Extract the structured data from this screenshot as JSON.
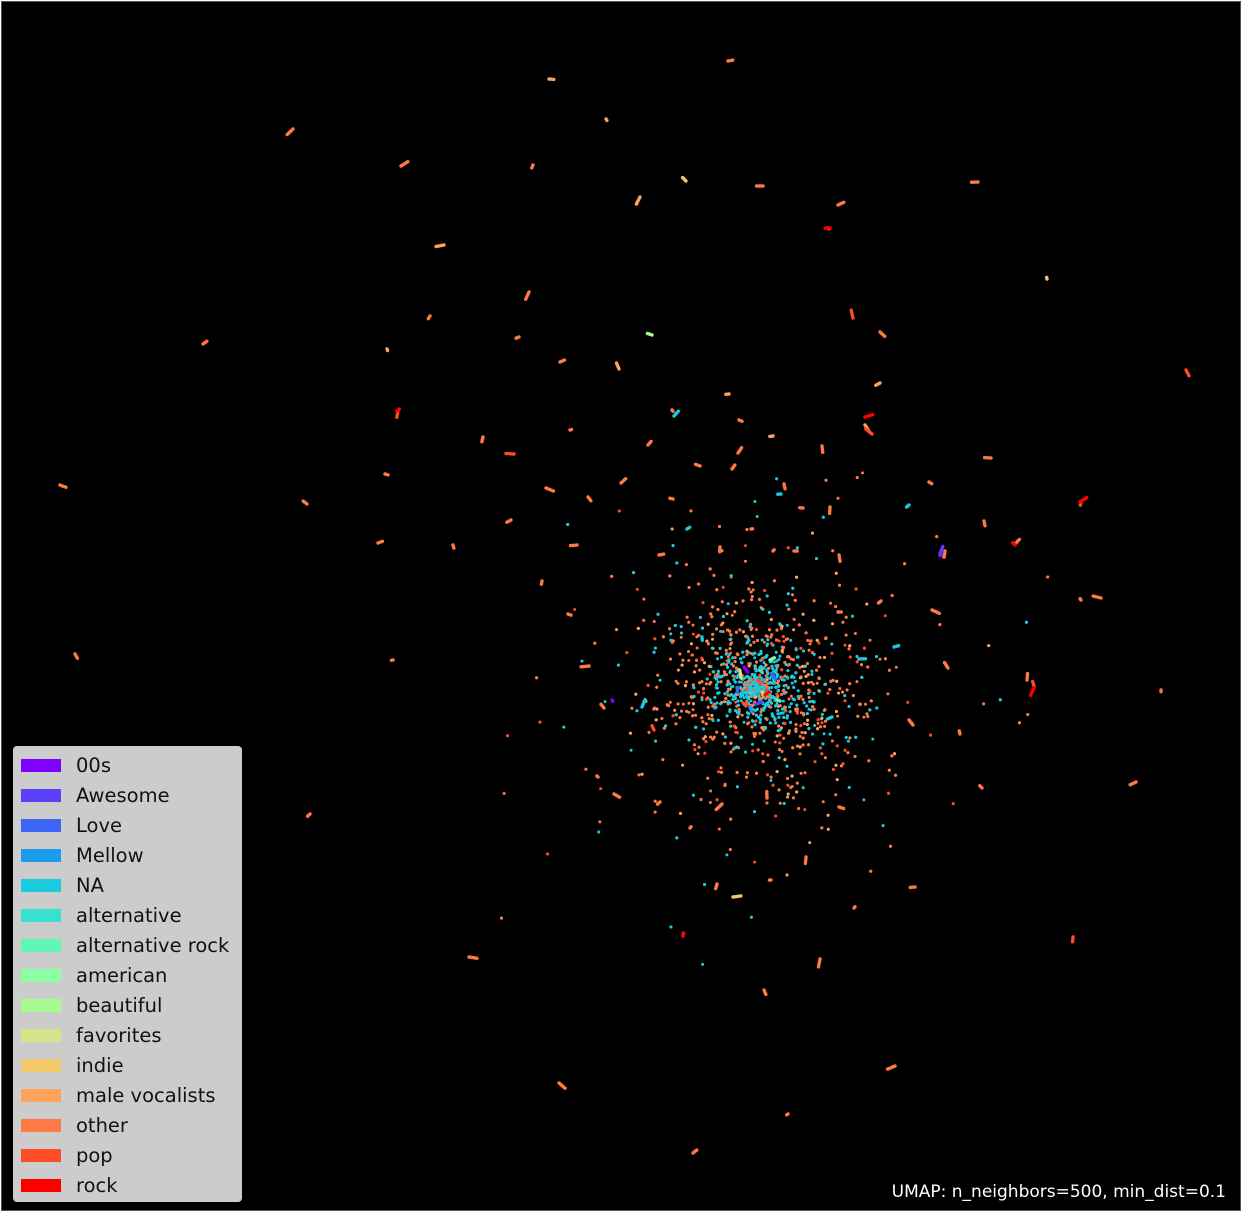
{
  "chart_data": {
    "type": "scatter",
    "title": "",
    "xlabel": "",
    "ylabel": "",
    "axes_visible": false,
    "grid": false,
    "background": "#000000",
    "legend_position": "lower-left",
    "annotation": "UMAP: n_neighbors=500, min_dist=0.1",
    "main_cluster": {
      "center": [
        755,
        685
      ],
      "spread": 85,
      "approx_points": 2600
    },
    "series": [
      {
        "name": "00s",
        "color": "#8000ff",
        "points": [
          [
            742,
            665
          ],
          [
            610,
            698
          ],
          [
            941,
            553
          ]
        ]
      },
      {
        "name": "Awesome",
        "color": "#5a40fa",
        "points": [
          [
            760,
            700
          ],
          [
            938,
            552
          ]
        ]
      },
      {
        "name": "Love",
        "color": "#3b66f5",
        "points": [
          [
            735,
            690
          ],
          [
            770,
            672
          ]
        ]
      },
      {
        "name": "Mellow",
        "color": "#1d9ced",
        "points": [
          [
            758,
            683
          ],
          [
            748,
            705
          ]
        ]
      },
      {
        "name": "NA",
        "color": "#1ccadf",
        "points": [
          [
            779,
            492
          ],
          [
            685,
            527
          ],
          [
            907,
            503
          ],
          [
            857,
            657
          ],
          [
            892,
            645
          ],
          [
            640,
            705
          ],
          [
            672,
            414
          ],
          [
            700,
            635
          ],
          [
            745,
            641
          ],
          [
            812,
            700
          ],
          [
            830,
            715
          ]
        ]
      },
      {
        "name": "alternative",
        "color": "#38e0d0",
        "points": [
          [
            760,
            670
          ]
        ]
      },
      {
        "name": "alternative rock",
        "color": "#60f6b6",
        "points": [
          [
            778,
            699
          ]
        ]
      },
      {
        "name": "american",
        "color": "#8cfea3",
        "points": [
          [
            768,
            658
          ]
        ]
      },
      {
        "name": "beautiful",
        "color": "#a8fb90",
        "points": [
          [
            650,
            333
          ]
        ]
      },
      {
        "name": "favorites",
        "color": "#d4e48a",
        "points": [
          [
            739,
            676
          ]
        ]
      },
      {
        "name": "indie",
        "color": "#f3c86a",
        "points": [
          [
            1045,
            277
          ],
          [
            731,
            895
          ],
          [
            684,
            179
          ],
          [
            760,
            690
          ]
        ]
      },
      {
        "name": "male vocalists",
        "color": "#ffa25a",
        "points": [
          [
            547,
            77
          ],
          [
            604,
            117
          ],
          [
            638,
            195
          ],
          [
            442,
            243
          ],
          [
            385,
            347
          ],
          [
            617,
            367
          ],
          [
            727,
            392
          ],
          [
            771,
            434
          ],
          [
            863,
            423
          ],
          [
            878,
            381
          ]
        ]
      },
      {
        "name": "other",
        "color": "#ff7944",
        "points": [
          [
            726,
            59
          ],
          [
            291,
            127
          ],
          [
            399,
            164
          ],
          [
            531,
            163
          ],
          [
            761,
            184
          ],
          [
            976,
            180
          ],
          [
            836,
            203
          ],
          [
            527,
            290
          ],
          [
            428,
            314
          ],
          [
            517,
            335
          ],
          [
            558,
            360
          ],
          [
            201,
            342
          ],
          [
            878,
            330
          ],
          [
            670,
            408
          ],
          [
            737,
            418
          ],
          [
            568,
            428
          ],
          [
            481,
            435
          ],
          [
            646,
            443
          ],
          [
            736,
            451
          ],
          [
            820,
            444
          ],
          [
            989,
            456
          ],
          [
            698,
            464
          ],
          [
            730,
            467
          ],
          [
            383,
            472
          ],
          [
            544,
            486
          ],
          [
            586,
            495
          ],
          [
            619,
            481
          ],
          [
            671,
            497
          ],
          [
            782,
            482
          ],
          [
            801,
            506
          ],
          [
            828,
            505
          ],
          [
            927,
            480
          ],
          [
            509,
            518
          ],
          [
            749,
            527
          ],
          [
            982,
            519
          ],
          [
            575,
            543
          ],
          [
            657,
            553
          ],
          [
            718,
            545
          ],
          [
            771,
            549
          ],
          [
            792,
            549
          ],
          [
            837,
            553
          ],
          [
            943,
            549
          ],
          [
            540,
            579
          ],
          [
            566,
            612
          ],
          [
            836,
            610
          ],
          [
            879,
            599
          ],
          [
            930,
            608
          ],
          [
            1079,
            598
          ],
          [
            1099,
            596
          ],
          [
            58,
            483
          ],
          [
            305,
            502
          ],
          [
            376,
            541
          ],
          [
            451,
            543
          ],
          [
            73,
            652
          ],
          [
            391,
            658
          ],
          [
            587,
            664
          ],
          [
            946,
            666
          ],
          [
            1025,
            678
          ],
          [
            1159,
            688
          ],
          [
            602,
            706
          ],
          [
            907,
            718
          ],
          [
            958,
            732
          ],
          [
            1013,
            542
          ],
          [
            596,
            775
          ],
          [
            980,
            786
          ],
          [
            1134,
            780
          ],
          [
            612,
            792
          ],
          [
            658,
            800
          ],
          [
            720,
            802
          ],
          [
            765,
            796
          ],
          [
            804,
            855
          ],
          [
            837,
            805
          ],
          [
            688,
            826
          ],
          [
            715,
            882
          ],
          [
            769,
            878
          ],
          [
            913,
            885
          ],
          [
            852,
            906
          ],
          [
            308,
            812
          ],
          [
            467,
            955
          ],
          [
            557,
            1081
          ],
          [
            762,
            988
          ],
          [
            818,
            957
          ],
          [
            893,
            1064
          ],
          [
            786,
            1112
          ],
          [
            691,
            1151
          ]
        ]
      },
      {
        "name": "pop",
        "color": "#ff4c26",
        "points": [
          [
            827,
            227
          ],
          [
            851,
            316
          ],
          [
            396,
            409
          ],
          [
            870,
            432
          ],
          [
            1184,
            368
          ],
          [
            1079,
            500
          ],
          [
            1032,
            684
          ],
          [
            681,
            933
          ],
          [
            1071,
            935
          ],
          [
            512,
            452
          ],
          [
            759,
            682
          ],
          [
            744,
            704
          ],
          [
            652,
            728
          ]
        ]
      },
      {
        "name": "rock",
        "color": "#ff0000",
        "points": [
          [
            863,
            415
          ],
          [
            1013,
            543
          ],
          [
            1078,
            500
          ],
          [
            828,
            226
          ],
          [
            395,
            409
          ],
          [
            1032,
            686
          ],
          [
            681,
            934
          ],
          [
            767,
            690
          ]
        ]
      }
    ]
  }
}
